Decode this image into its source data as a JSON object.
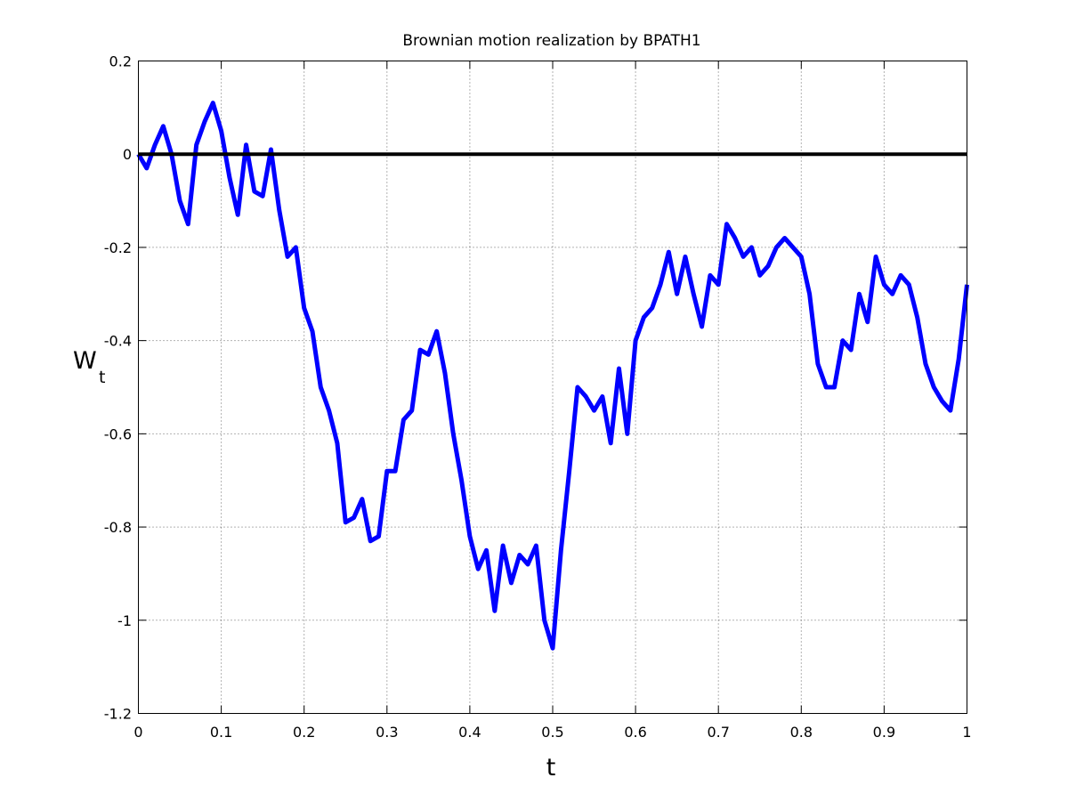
{
  "chart_data": {
    "type": "line",
    "title": "Brownian motion realization by BPATH1",
    "xlabel": "t",
    "ylabel": "W",
    "ylabel_subscript": "t",
    "xlim": [
      0,
      1
    ],
    "ylim": [
      -1.2,
      0.2
    ],
    "xticks": [
      0,
      0.1,
      0.2,
      0.3,
      0.4,
      0.5,
      0.6,
      0.7,
      0.8,
      0.9,
      1
    ],
    "yticks": [
      -1.2,
      -1,
      -0.8,
      -0.6,
      -0.4,
      -0.2,
      0,
      0.2
    ],
    "grid": true,
    "series": [
      {
        "color": "#0000ff",
        "line_width": 5,
        "x": [
          0,
          0.01,
          0.02,
          0.03,
          0.04,
          0.05,
          0.06,
          0.07,
          0.08,
          0.09,
          0.1,
          0.11,
          0.12,
          0.13,
          0.14,
          0.15,
          0.16,
          0.17,
          0.18,
          0.19,
          0.2,
          0.21,
          0.22,
          0.23,
          0.24,
          0.25,
          0.26,
          0.27,
          0.28,
          0.29,
          0.3,
          0.31,
          0.32,
          0.33,
          0.34,
          0.35,
          0.36,
          0.37,
          0.38,
          0.39,
          0.4,
          0.41,
          0.42,
          0.43,
          0.44,
          0.45,
          0.46,
          0.47,
          0.48,
          0.49,
          0.5,
          0.51,
          0.52,
          0.53,
          0.54,
          0.55,
          0.56,
          0.57,
          0.58,
          0.59,
          0.6,
          0.61,
          0.62,
          0.63,
          0.64,
          0.65,
          0.66,
          0.67,
          0.68,
          0.69,
          0.7,
          0.71,
          0.72,
          0.73,
          0.74,
          0.75,
          0.76,
          0.77,
          0.78,
          0.79,
          0.8,
          0.81,
          0.82,
          0.83,
          0.84,
          0.85,
          0.86,
          0.87,
          0.88,
          0.89,
          0.9,
          0.91,
          0.92,
          0.93,
          0.94,
          0.95,
          0.96,
          0.97,
          0.98,
          0.99,
          1
        ],
        "values": [
          0,
          -0.03,
          0.02,
          0.06,
          0,
          -0.1,
          -0.15,
          0.02,
          0.07,
          0.11,
          0.05,
          -0.05,
          -0.13,
          0.02,
          -0.08,
          -0.09,
          0.01,
          -0.12,
          -0.22,
          -0.2,
          -0.33,
          -0.38,
          -0.5,
          -0.55,
          -0.62,
          -0.79,
          -0.78,
          -0.74,
          -0.83,
          -0.82,
          -0.68,
          -0.68,
          -0.57,
          -0.55,
          -0.42,
          -0.43,
          -0.38,
          -0.47,
          -0.6,
          -0.7,
          -0.82,
          -0.89,
          -0.85,
          -0.98,
          -0.84,
          -0.92,
          -0.86,
          -0.88,
          -0.84,
          -1,
          -1.06,
          -0.85,
          -0.68,
          -0.5,
          -0.52,
          -0.55,
          -0.52,
          -0.62,
          -0.46,
          -0.6,
          -0.4,
          -0.35,
          -0.33,
          -0.28,
          -0.21,
          -0.3,
          -0.22,
          -0.3,
          -0.37,
          -0.26,
          -0.28,
          -0.15,
          -0.18,
          -0.22,
          -0.2,
          -0.26,
          -0.24,
          -0.2,
          -0.18,
          -0.2,
          -0.22,
          -0.3,
          -0.45,
          -0.5,
          -0.5,
          -0.4,
          -0.42,
          -0.3,
          -0.36,
          -0.22,
          -0.28,
          -0.3,
          -0.26,
          -0.28,
          -0.35,
          -0.45,
          -0.5,
          -0.53,
          -0.55,
          -0.44,
          -0.28
        ]
      },
      {
        "color": "#000000",
        "line_width": 4,
        "x": [
          0,
          1
        ],
        "values": [
          0,
          0
        ]
      }
    ]
  }
}
